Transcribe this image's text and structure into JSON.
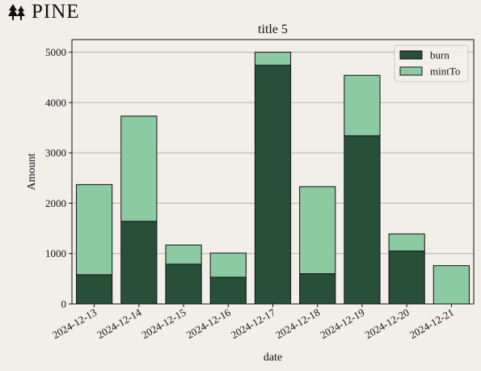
{
  "brand": {
    "name": "PINE",
    "icon": "pine-tree-icon"
  },
  "chart_data": {
    "type": "bar",
    "stacked": true,
    "title": "title 5",
    "xlabel": "date",
    "ylabel": "Amount",
    "ylim": [
      0,
      5250
    ],
    "yticks": [
      0,
      1000,
      2000,
      3000,
      4000,
      5000
    ],
    "grid": "y",
    "legend_position": "top-right",
    "categories": [
      "2024-12-13",
      "2024-12-14",
      "2024-12-15",
      "2024-12-16",
      "2024-12-17",
      "2024-12-18",
      "2024-12-19",
      "2024-12-20",
      "2024-12-21"
    ],
    "series": [
      {
        "name": "burn",
        "color": "#285039",
        "values": [
          580,
          1640,
          790,
          530,
          4740,
          600,
          3340,
          1050,
          0
        ]
      },
      {
        "name": "mintTo",
        "color": "#8ccaa2",
        "values": [
          1790,
          2090,
          380,
          480,
          260,
          1730,
          1200,
          340,
          760
        ]
      }
    ]
  }
}
